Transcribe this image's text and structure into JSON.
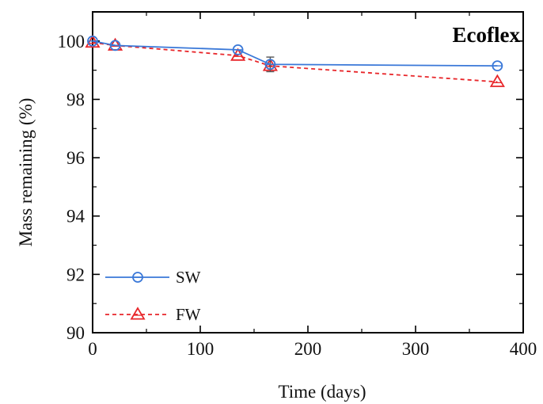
{
  "chart_data": {
    "type": "line",
    "title": "Ecoflex",
    "xlabel": "Time (days)",
    "ylabel": "Mass remaining (%)",
    "xlim": [
      0,
      400
    ],
    "ylim": [
      90,
      101
    ],
    "xticks": [
      0,
      100,
      200,
      300,
      400
    ],
    "yticks": [
      90,
      92,
      94,
      96,
      98,
      100
    ],
    "grid": false,
    "legend_position": "bottom-left",
    "series": [
      {
        "name": "SW",
        "color": "#3a78d8",
        "line_style": "solid",
        "marker": "circle",
        "x": [
          0,
          21,
          135,
          165,
          376
        ],
        "y": [
          100.0,
          99.85,
          99.7,
          99.2,
          99.15
        ],
        "error": [
          0,
          0,
          0,
          0.25,
          0
        ]
      },
      {
        "name": "FW",
        "color": "#e8262a",
        "line_style": "dashed",
        "marker": "triangle",
        "x": [
          0,
          21,
          135,
          165,
          376
        ],
        "y": [
          99.95,
          99.85,
          99.5,
          99.15,
          98.6
        ],
        "error": [
          0,
          0,
          0,
          0,
          0
        ]
      }
    ]
  }
}
